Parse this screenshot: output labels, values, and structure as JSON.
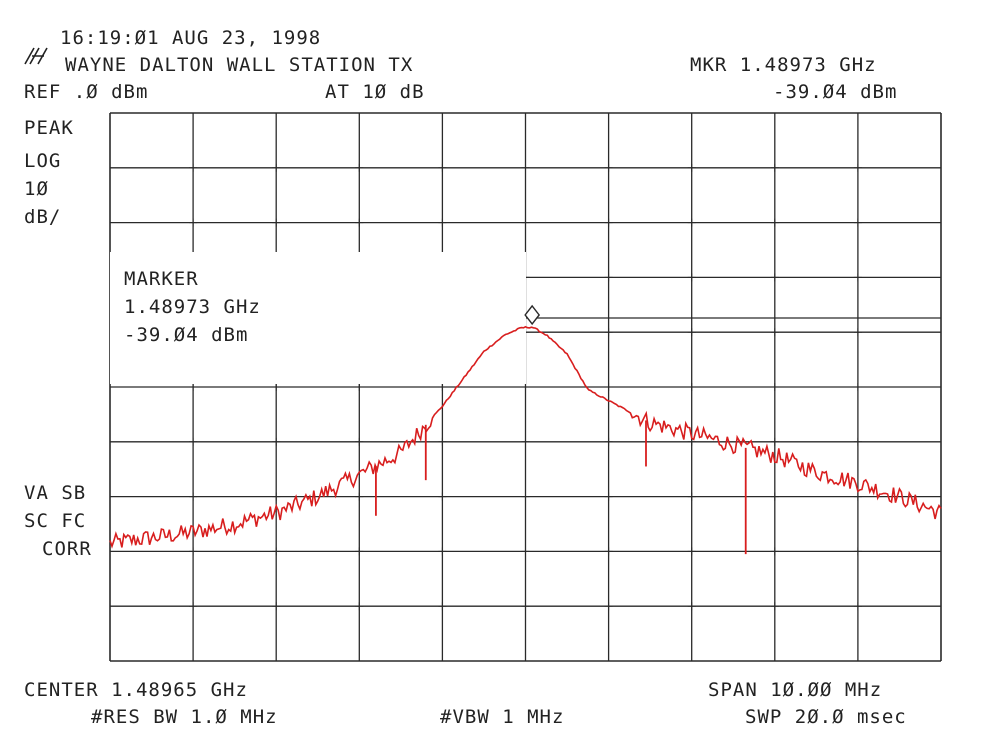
{
  "header": {
    "datetime": "16:19:Ø1 AUG 23, 1998",
    "station": "WAYNE DALTON WALL STATION TX",
    "marker_readout_freq": "MKR 1.48973 GHz",
    "marker_readout_level": "-39.Ø4 dBm",
    "ref_level": "REF .Ø dBm",
    "attenuation": "AT 1Ø dB"
  },
  "left_annotations": {
    "detector": "PEAK",
    "scale_mode": "LOG",
    "scale_value": "1Ø",
    "scale_unit": "dB/",
    "flags_line1": "VA SB",
    "flags_line2": "SC FC",
    "flags_line3": "CORR"
  },
  "marker_box": {
    "title": "MARKER",
    "frequency": "1.48973 GHz",
    "level": "-39.Ø4 dBm"
  },
  "footer": {
    "center": "CENTER 1.48965 GHz",
    "span": "SPAN 1Ø.ØØ MHz",
    "rbw": "#RES BW 1.Ø MHz",
    "vbw": "#VBW 1 MHz",
    "sweep": "SWP 2Ø.Ø msec"
  },
  "colors": {
    "trace": "#d81e1e",
    "grid": "#2a2a2a",
    "text": "#222222"
  },
  "icons": {
    "logo": "hp-logo-icon",
    "marker": "diamond-marker-icon"
  },
  "chart_data": {
    "type": "line",
    "title": "",
    "xlabel": "",
    "ylabel": "",
    "x_unit": "GHz",
    "y_unit": "dBm",
    "center_ghz": 1.48965,
    "span_mhz": 10.0,
    "xlim": [
      1.48465,
      1.49465
    ],
    "ylim": [
      -100,
      0
    ],
    "y_divisions": 10,
    "x_divisions": 10,
    "grid": true,
    "marker": {
      "x": 1.48973,
      "y": -39.04
    },
    "series": [
      {
        "x": [
          1.48465,
          1.48515,
          1.48565,
          1.48615,
          1.48665,
          1.48715,
          1.48765,
          1.48815,
          1.48865,
          1.4889,
          1.48915,
          1.4894,
          1.4896,
          1.48973,
          1.4899,
          1.49015,
          1.4904,
          1.49065,
          1.4909,
          1.49115,
          1.49165,
          1.49215,
          1.49265,
          1.49315,
          1.49365,
          1.49415,
          1.49465
        ],
        "y": [
          -78.5,
          -77.5,
          -76.5,
          -75,
          -73,
          -70,
          -66,
          -62,
          -53.5,
          -48.5,
          -43.5,
          -40.5,
          -39.2,
          -39.04,
          -40.5,
          -44,
          -50.5,
          -52.5,
          -54.5,
          -56.5,
          -58.5,
          -60.5,
          -62.5,
          -65.5,
          -67.5,
          -70,
          -73
        ]
      }
    ],
    "spurs": [
      {
        "x": 1.48785,
        "y": -73.5
      },
      {
        "x": 1.48845,
        "y": -67.0
      },
      {
        "x": 1.4911,
        "y": -64.5
      },
      {
        "x": 1.4923,
        "y": -80.5
      }
    ]
  }
}
